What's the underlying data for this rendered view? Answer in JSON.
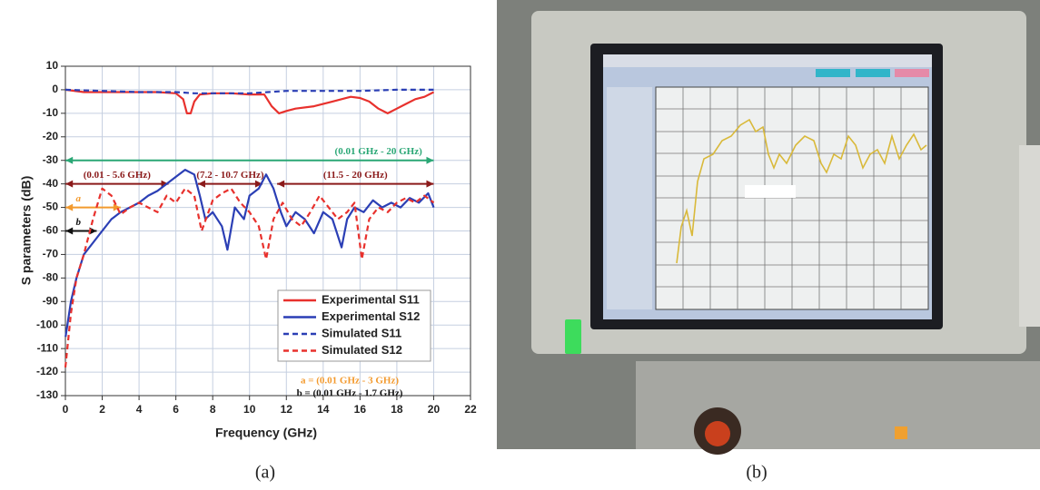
{
  "chart_data": {
    "type": "line",
    "xlabel": "Frequency (GHz)",
    "ylabel": "S parameters (dB)",
    "xlim": [
      0,
      22
    ],
    "ylim": [
      -130,
      10
    ],
    "xticks": [
      0,
      2,
      4,
      6,
      8,
      10,
      12,
      14,
      16,
      18,
      20,
      22
    ],
    "yticks": [
      -130,
      -120,
      -110,
      -100,
      -90,
      -80,
      -70,
      -60,
      -50,
      -40,
      -30,
      -20,
      -10,
      0,
      10
    ],
    "grid": true,
    "legend_position": "lower right",
    "series": [
      {
        "name": "Experimental S11",
        "color": "#e8312d",
        "style": "solid",
        "x": [
          0,
          1,
          3,
          5,
          6,
          6.4,
          6.6,
          6.8,
          7,
          7.3,
          8,
          9,
          10,
          10.8,
          11.2,
          11.6,
          12,
          12.5,
          13.5,
          14.5,
          15.5,
          16,
          16.5,
          17,
          17.5,
          18,
          18.5,
          19,
          19.5,
          20
        ],
        "values": [
          0,
          -1,
          -1,
          -1,
          -1.5,
          -4,
          -10,
          -10,
          -5,
          -2,
          -1.5,
          -1.5,
          -2,
          -2,
          -7,
          -10,
          -9,
          -8,
          -7,
          -5,
          -3,
          -3.5,
          -5,
          -8,
          -10,
          -8,
          -6,
          -4,
          -3,
          -1
        ]
      },
      {
        "name": "Experimental S12",
        "color": "#2b3fb5",
        "style": "solid",
        "x": [
          0.01,
          0.3,
          0.6,
          1,
          1.5,
          2,
          2.5,
          3,
          3.5,
          4,
          4.5,
          5,
          5.5,
          6,
          6.5,
          7,
          7.3,
          7.6,
          8,
          8.5,
          8.8,
          9.2,
          9.7,
          10,
          10.5,
          10.9,
          11.3,
          11.7,
          12,
          12.5,
          13,
          13.5,
          14,
          14.5,
          15,
          15.3,
          15.7,
          16.2,
          16.7,
          17.2,
          17.7,
          18.2,
          18.7,
          19.2,
          19.7,
          20
        ],
        "values": [
          -105,
          -90,
          -80,
          -70,
          -65,
          -60,
          -55,
          -52,
          -50,
          -48,
          -45,
          -43,
          -40,
          -37,
          -34,
          -36,
          -45,
          -55,
          -52,
          -58,
          -68,
          -50,
          -55,
          -45,
          -42,
          -36,
          -42,
          -52,
          -58,
          -52,
          -55,
          -61,
          -52,
          -55,
          -67,
          -55,
          -50,
          -52,
          -47,
          -50,
          -48,
          -50,
          -46,
          -48,
          -44,
          -50
        ]
      },
      {
        "name": "Simulated S11",
        "color": "#2b3fb5",
        "style": "dashed",
        "x": [
          0,
          2,
          4,
          6,
          7,
          8,
          9,
          10,
          11,
          12,
          14,
          16,
          18,
          20
        ],
        "values": [
          0,
          -0.5,
          -1,
          -1,
          -1.5,
          -1.5,
          -1.5,
          -1.5,
          -1,
          -0.5,
          -0.5,
          -0.5,
          0,
          0
        ]
      },
      {
        "name": "Simulated S12",
        "color": "#e8312d",
        "style": "dashed",
        "x": [
          0,
          0.3,
          0.6,
          1,
          1.5,
          2,
          2.5,
          3,
          3.5,
          4,
          4.5,
          5,
          5.5,
          6,
          6.5,
          7,
          7.4,
          8,
          8.5,
          9,
          9.5,
          10,
          10.5,
          10.9,
          11.3,
          11.8,
          12.3,
          12.8,
          13.3,
          13.8,
          14.3,
          14.8,
          15.3,
          15.7,
          16.1,
          16.5,
          17,
          17.5,
          18,
          18.5,
          19,
          19.5,
          20
        ],
        "values": [
          -118,
          -95,
          -80,
          -70,
          -55,
          -42,
          -45,
          -53,
          -50,
          -48,
          -50,
          -52,
          -45,
          -48,
          -42,
          -45,
          -60,
          -47,
          -44,
          -42,
          -48,
          -52,
          -58,
          -72,
          -55,
          -48,
          -55,
          -58,
          -52,
          -45,
          -50,
          -55,
          -52,
          -48,
          -72,
          -55,
          -50,
          -52,
          -48,
          -46,
          -48,
          -45,
          -48
        ]
      }
    ],
    "annotations": [
      {
        "label": "(0.01 GHz - 20 GHz)",
        "x": [
          0.01,
          20
        ],
        "y": -30,
        "color": "#2aa775"
      },
      {
        "label": "(0.01 - 5.6 GHz)",
        "x": [
          0.01,
          5.6
        ],
        "y": -40,
        "color": "#8b1a1a"
      },
      {
        "label": "(7.2 - 10.7 GHz)",
        "x": [
          7.2,
          10.7
        ],
        "y": -40,
        "color": "#8b1a1a"
      },
      {
        "label": "(11.5 - 20 GHz)",
        "x": [
          11.5,
          20
        ],
        "y": -40,
        "color": "#8b1a1a"
      },
      {
        "label": "a",
        "x": [
          0.01,
          3
        ],
        "y": -50,
        "color": "#f39a2e"
      },
      {
        "label": "b",
        "x": [
          0.01,
          1.7
        ],
        "y": -60,
        "color": "#111111"
      }
    ],
    "notes": [
      {
        "text": "a = (0.01 GHz - 3 GHz)",
        "color": "#f39a2e"
      },
      {
        "text": "b = (0.01 GHz - 1.7 GHz)",
        "color": "#111111"
      }
    ]
  },
  "captions": [
    "(a)",
    "(b)"
  ]
}
